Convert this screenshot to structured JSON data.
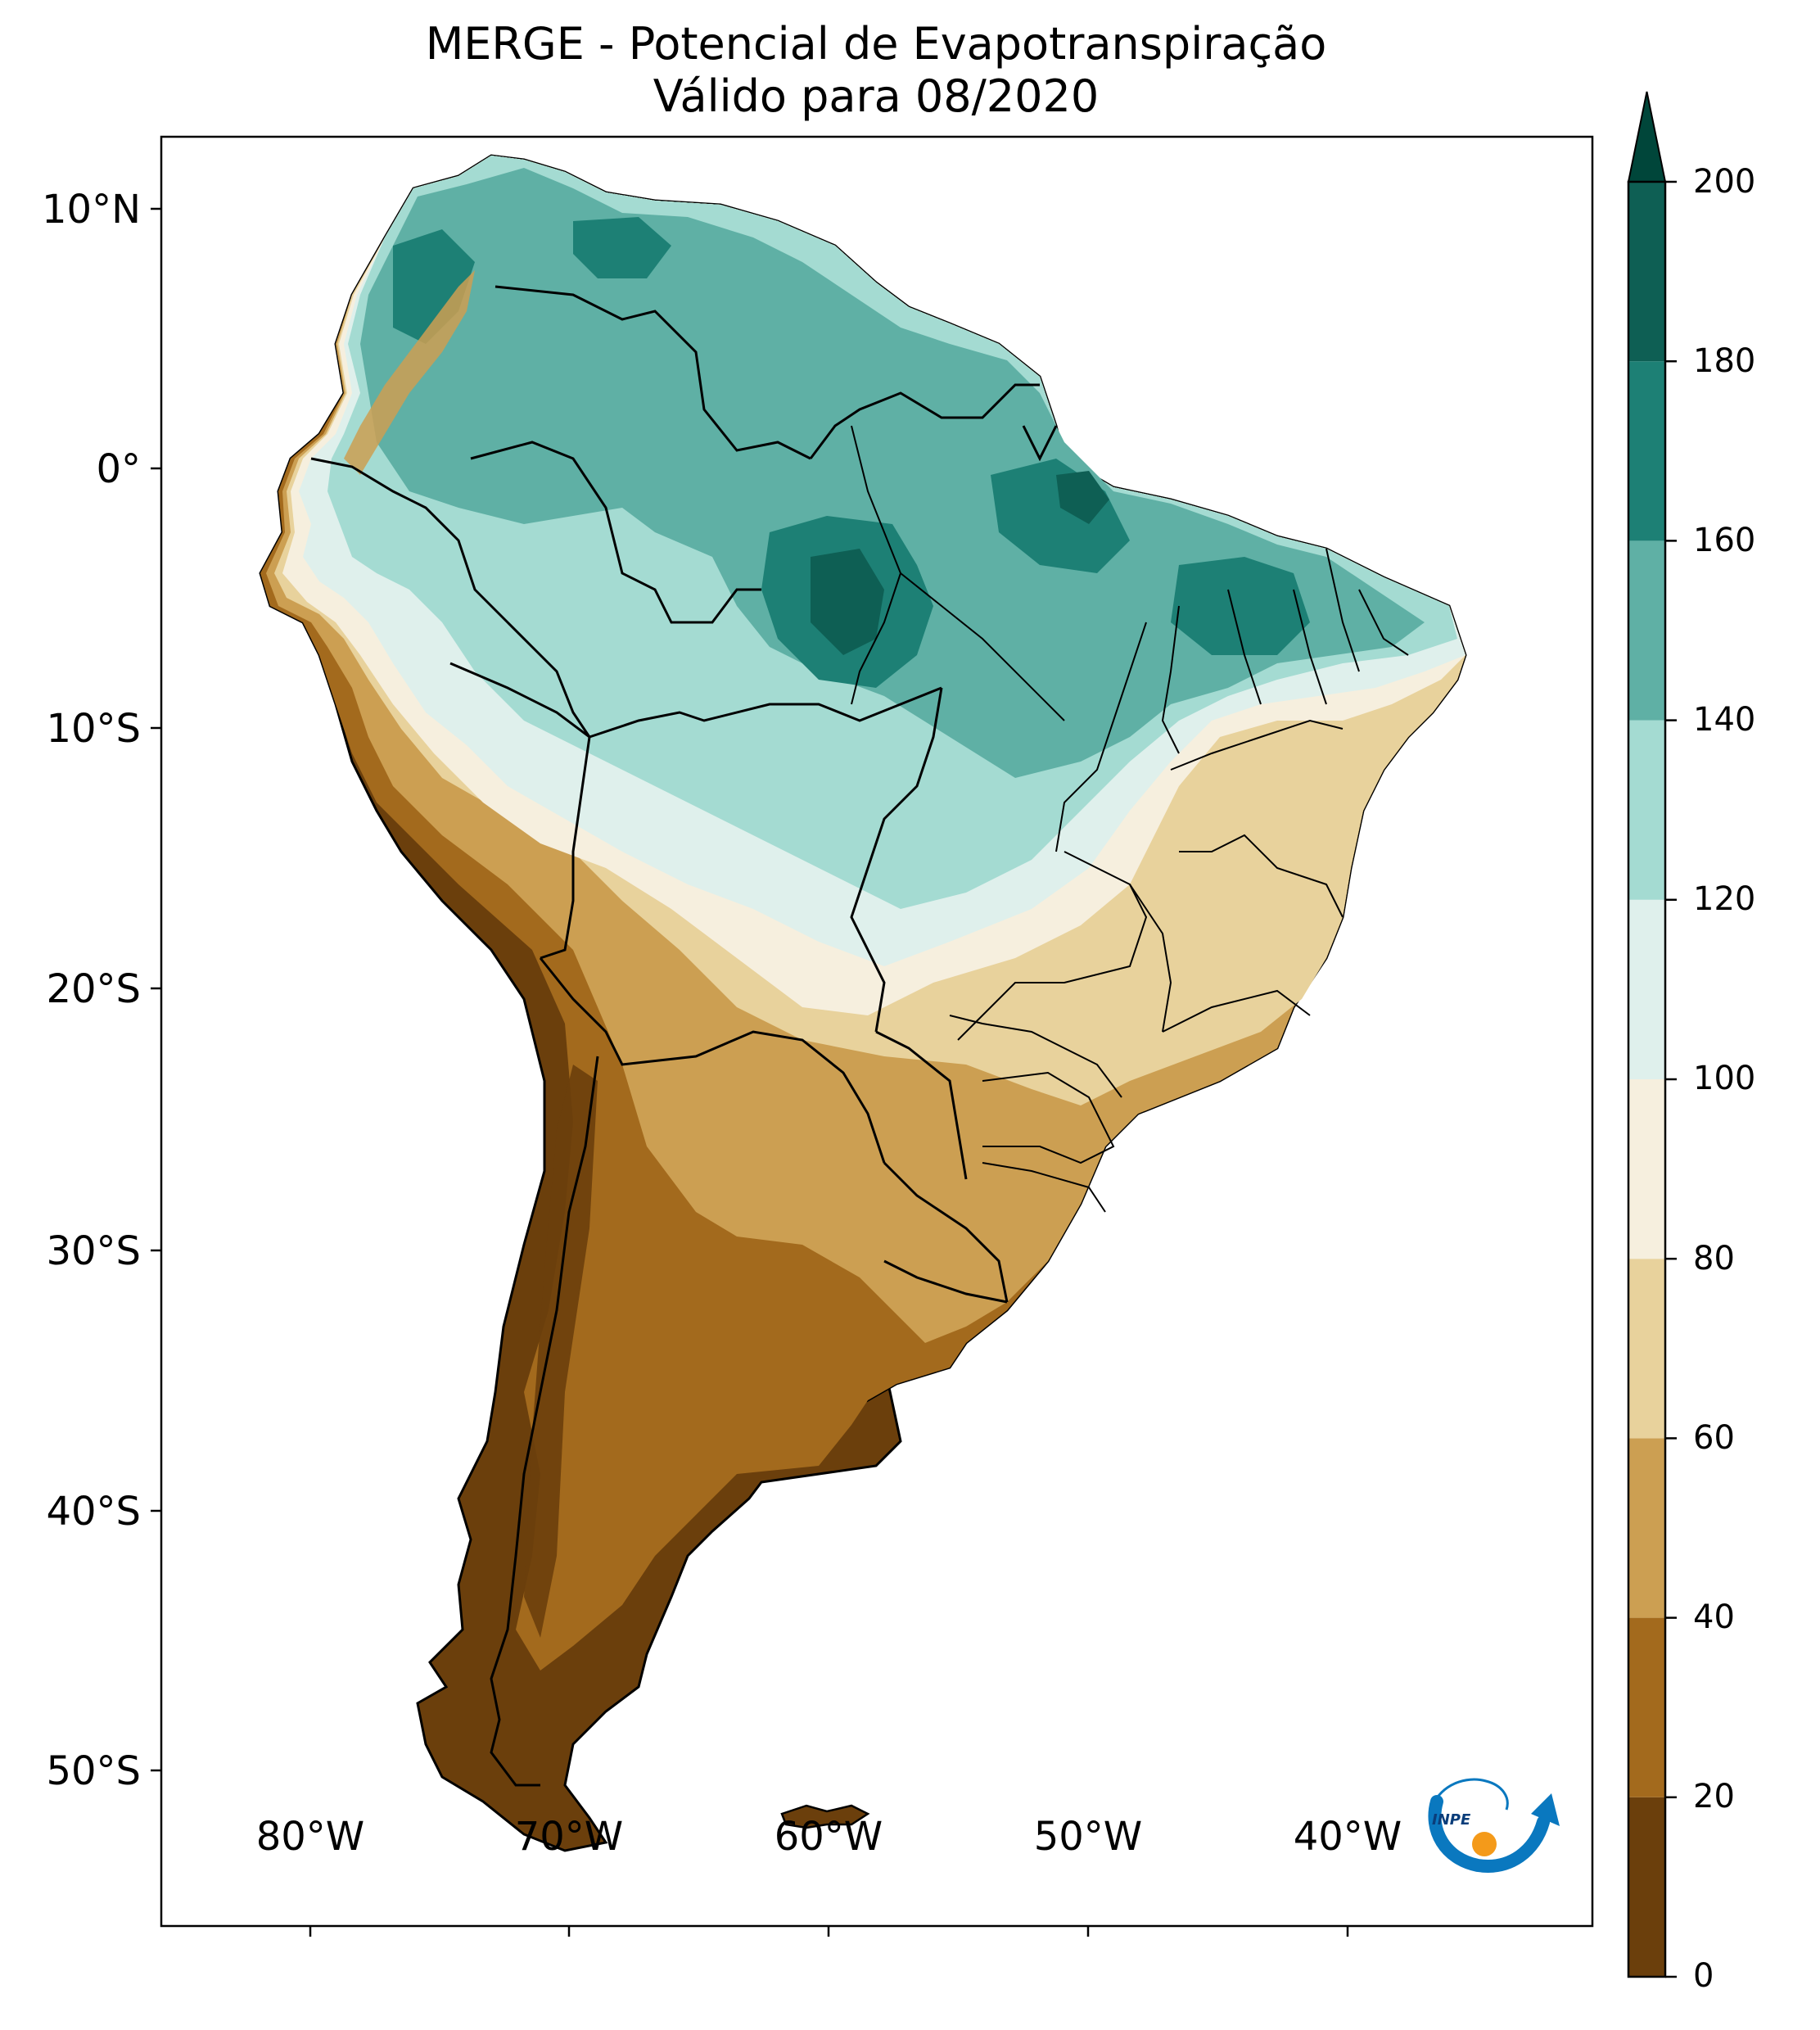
{
  "title": {
    "line1": "MERGE - Potencial de Evapotranspiração",
    "line2": "Válido para 08/2020"
  },
  "map": {
    "lat_ticks": [
      "10°N",
      "0°",
      "10°S",
      "20°S",
      "30°S",
      "40°S",
      "50°S"
    ],
    "lon_ticks": [
      "80°W",
      "70°W",
      "60°W",
      "50°W",
      "40°W"
    ]
  },
  "colorbar": {
    "ticks": [
      "0",
      "20",
      "40",
      "60",
      "80",
      "100",
      "120",
      "140",
      "160",
      "180",
      "200"
    ],
    "colors": [
      "#6b3f0c",
      "#a36a1d",
      "#cc9f52",
      "#e8d29c",
      "#f6efde",
      "#dff0ec",
      "#a4dbd2",
      "#5fb0a5",
      "#1d8075",
      "#0e5f54",
      "#00463a"
    ],
    "extend": "max"
  },
  "logo": {
    "text": "INPE",
    "colors": [
      "#0a78bf",
      "#f49a1a"
    ]
  }
}
